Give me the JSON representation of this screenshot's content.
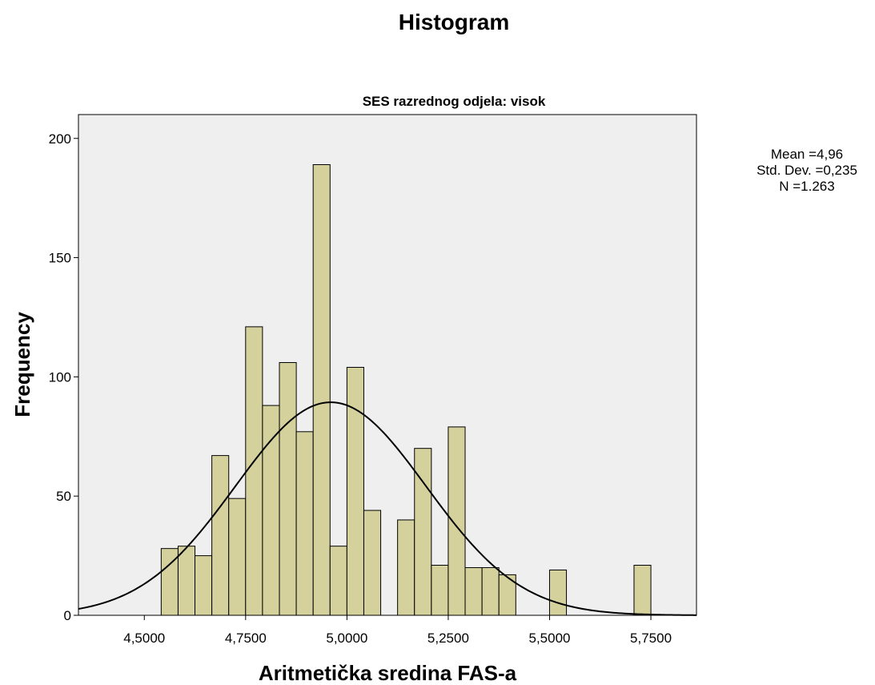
{
  "chart_data": {
    "type": "bar",
    "title": "Histogram",
    "subtitle": "SES razrednog odjela: visok",
    "xlabel": "Aritmetička sredina FAS-a",
    "ylabel": "Frequency",
    "xlim": [
      4.3375,
      5.8625
    ],
    "ylim": [
      0,
      210
    ],
    "bin_width": 0.04167,
    "grid": false,
    "background": "#efefef",
    "bar_color": "#d5d19d",
    "bar_edge_color": "#000000",
    "x_ticks": [
      {
        "value": 4.5,
        "label": "4,5000"
      },
      {
        "value": 4.75,
        "label": "4,7500"
      },
      {
        "value": 5.0,
        "label": "5,0000"
      },
      {
        "value": 5.25,
        "label": "5,2500"
      },
      {
        "value": 5.5,
        "label": "5,5000"
      },
      {
        "value": 5.75,
        "label": "5,7500"
      }
    ],
    "y_ticks": [
      {
        "value": 0,
        "label": "0"
      },
      {
        "value": 50,
        "label": "50"
      },
      {
        "value": 100,
        "label": "100"
      },
      {
        "value": 150,
        "label": "150"
      },
      {
        "value": 200,
        "label": "200"
      }
    ],
    "bins": [
      {
        "x": 4.5625,
        "value": 28
      },
      {
        "x": 4.6042,
        "value": 29
      },
      {
        "x": 4.6458,
        "value": 25
      },
      {
        "x": 4.6875,
        "value": 67
      },
      {
        "x": 4.7292,
        "value": 49
      },
      {
        "x": 4.7708,
        "value": 121
      },
      {
        "x": 4.8125,
        "value": 88
      },
      {
        "x": 4.8542,
        "value": 106
      },
      {
        "x": 4.8958,
        "value": 77
      },
      {
        "x": 4.9375,
        "value": 189
      },
      {
        "x": 4.9792,
        "value": 29
      },
      {
        "x": 5.0208,
        "value": 104
      },
      {
        "x": 5.0625,
        "value": 44
      },
      {
        "x": 5.1042,
        "value": 0
      },
      {
        "x": 5.1458,
        "value": 40
      },
      {
        "x": 5.1875,
        "value": 70
      },
      {
        "x": 5.2292,
        "value": 21
      },
      {
        "x": 5.2708,
        "value": 79
      },
      {
        "x": 5.3125,
        "value": 20
      },
      {
        "x": 5.3542,
        "value": 20
      },
      {
        "x": 5.3958,
        "value": 17
      },
      {
        "x": 5.5208,
        "value": 19
      },
      {
        "x": 5.7292,
        "value": 21
      }
    ],
    "normal_curve": {
      "mean": 4.96,
      "std": 0.235,
      "n": 1263
    }
  },
  "stats": {
    "mean_text": "Mean =4,96",
    "std_text": "Std. Dev. =0,235",
    "n_text": "N =1.263"
  }
}
